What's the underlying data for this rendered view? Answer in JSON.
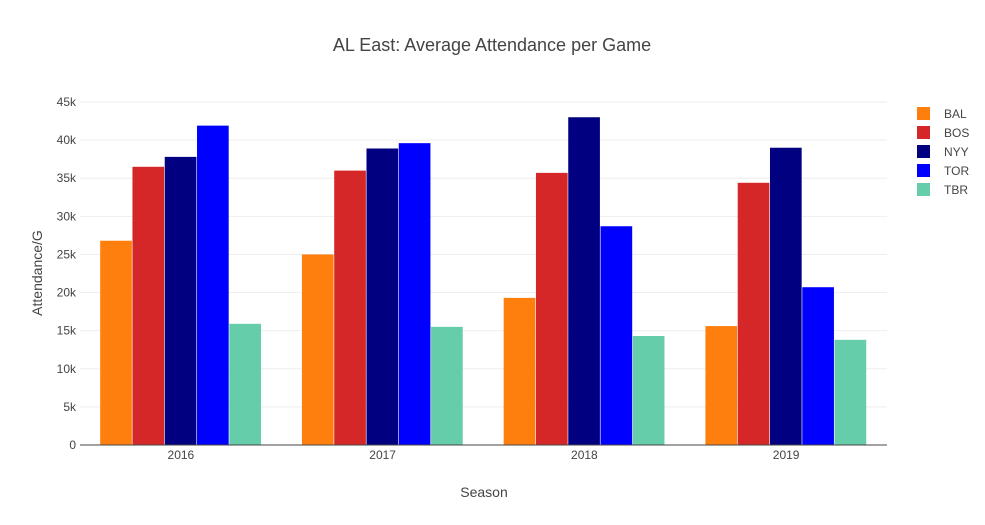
{
  "chart_data": {
    "type": "bar",
    "title": "AL East: Average Attendance per Game",
    "xlabel": "Season",
    "ylabel": "Attendance/G",
    "categories": [
      "2016",
      "2017",
      "2018",
      "2019"
    ],
    "ylim": [
      0,
      45000
    ],
    "yticks": [
      0,
      5000,
      10000,
      15000,
      20000,
      25000,
      30000,
      35000,
      40000,
      45000
    ],
    "ytick_labels": [
      "0",
      "5k",
      "10k",
      "15k",
      "20k",
      "25k",
      "30k",
      "35k",
      "40k",
      "45k"
    ],
    "grid": true,
    "legend_position": "top-right",
    "series": [
      {
        "name": "BAL",
        "color": "#ff7f0e",
        "values": [
          26800,
          25000,
          19300,
          15600
        ]
      },
      {
        "name": "BOS",
        "color": "#d62728",
        "values": [
          36500,
          36000,
          35700,
          34400
        ]
      },
      {
        "name": "NYY",
        "color": "#000080",
        "values": [
          37800,
          38900,
          43000,
          39000
        ]
      },
      {
        "name": "TOR",
        "color": "#0000ff",
        "values": [
          41900,
          39600,
          28700,
          20700
        ]
      },
      {
        "name": "TBR",
        "color": "#66cdaa",
        "values": [
          15900,
          15500,
          14300,
          13800
        ]
      }
    ]
  }
}
